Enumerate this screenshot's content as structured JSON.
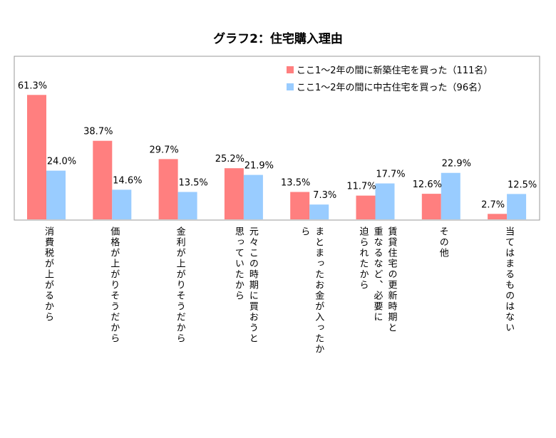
{
  "chart_data": {
    "type": "bar",
    "title": "グラフ2：住宅購入理由",
    "categories": [
      [
        "消費税が上がるから"
      ],
      [
        "価格が上がりそうだから"
      ],
      [
        "金利が上がりそうだから"
      ],
      [
        "元々この時期に買おうと",
        "思っていたから"
      ],
      [
        "まとまったお金が入ったか",
        "ら"
      ],
      [
        "賃貸住宅の更新時期と",
        "重なるなど、必要に",
        "迫られたから"
      ],
      [
        "その他"
      ],
      [
        "当てはまるものはない"
      ]
    ],
    "series": [
      {
        "name": "ここ1～2年の間に新築住宅を買った（111名）",
        "color": "#ff7f7f",
        "values": [
          61.3,
          38.7,
          29.7,
          25.2,
          13.5,
          11.7,
          12.6,
          2.7
        ],
        "labels": [
          "61.3%",
          "38.7%",
          "29.7%",
          "25.2%",
          "13.5%",
          "11.7%",
          "12.6%",
          "2.7%"
        ]
      },
      {
        "name": "ここ1～2年の間に中古住宅を買った（96名）",
        "color": "#99ccff",
        "values": [
          24.0,
          14.6,
          13.5,
          21.9,
          7.3,
          17.7,
          22.9,
          12.5
        ],
        "labels": [
          "24.0%",
          "14.6%",
          "13.5%",
          "21.9%",
          "7.3%",
          "17.7%",
          "22.9%",
          "12.5%"
        ]
      }
    ],
    "legend_position": "top-right",
    "grid": false
  }
}
